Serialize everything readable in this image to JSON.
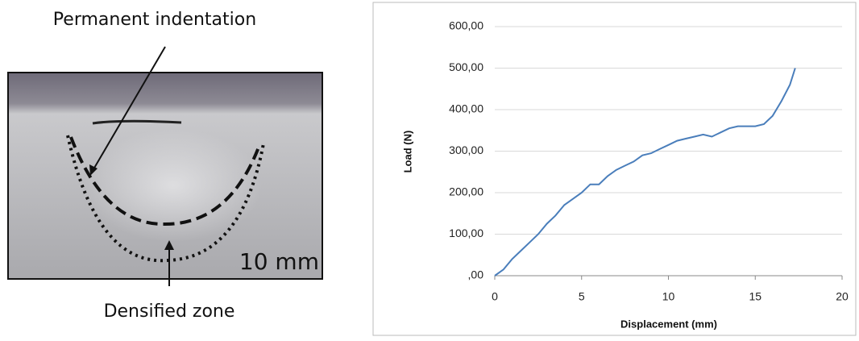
{
  "photo": {
    "top_label": "Permanent indentation",
    "bottom_label": "Densified zone",
    "scale_label": "10 mm"
  },
  "chart_data": {
    "type": "line",
    "x_label": "Displacement (mm)",
    "y_label": "Load (N)",
    "color": "#4a7ebb",
    "grid": true,
    "x": [
      0,
      0.5,
      1,
      1.5,
      2,
      2.5,
      3,
      3.5,
      4,
      4.5,
      5,
      5.5,
      6,
      6.5,
      7,
      7.5,
      8,
      8.5,
      9,
      9.5,
      10,
      10.5,
      11,
      11.5,
      12,
      12.5,
      13,
      13.5,
      14,
      14.5,
      15,
      15.5,
      16,
      16.5,
      17,
      17.3
    ],
    "values": [
      0,
      15,
      40,
      60,
      80,
      100,
      125,
      145,
      170,
      185,
      200,
      220,
      220,
      240,
      255,
      265,
      275,
      290,
      295,
      305,
      315,
      325,
      330,
      335,
      340,
      335,
      345,
      355,
      360,
      360,
      360,
      365,
      385,
      420,
      460,
      500
    ],
    "xlim": [
      0,
      20
    ],
    "xticks": [
      0,
      5,
      10,
      15,
      20
    ],
    "ylim": [
      0,
      600
    ],
    "yticks": [
      {
        "value": 0,
        "label": ",00"
      },
      {
        "value": 100,
        "label": "100,00"
      },
      {
        "value": 200,
        "label": "200,00"
      },
      {
        "value": 300,
        "label": "300,00"
      },
      {
        "value": 400,
        "label": "400,00"
      },
      {
        "value": 500,
        "label": "500,00"
      },
      {
        "value": 600,
        "label": "600,00"
      }
    ]
  }
}
